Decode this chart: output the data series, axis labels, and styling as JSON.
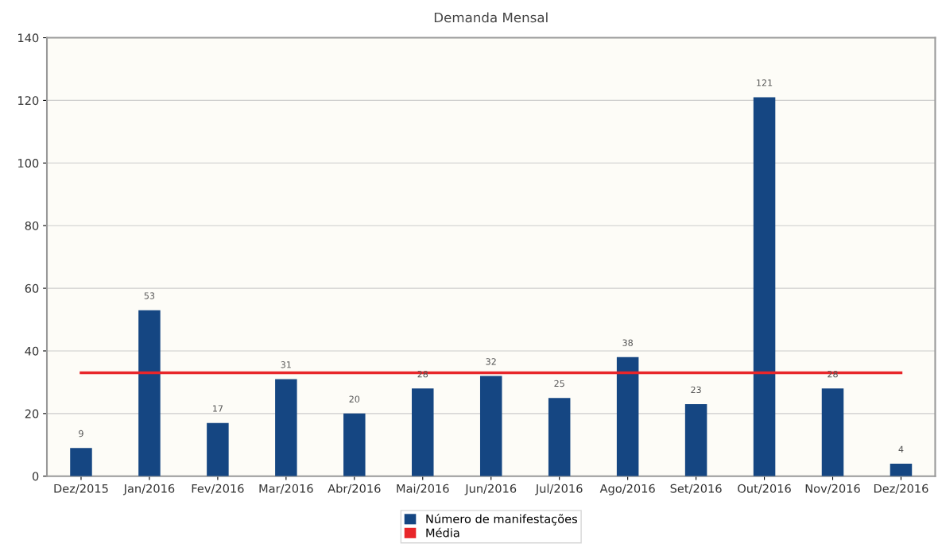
{
  "chart_data": {
    "type": "bar",
    "title": "Demanda Mensal",
    "categories": [
      "Dez/2015",
      "Jan/2016",
      "Fev/2016",
      "Mar/2016",
      "Abr/2016",
      "Mai/2016",
      "Jun/2016",
      "Jul/2016",
      "Ago/2016",
      "Set/2016",
      "Out/2016",
      "Nov/2016",
      "Dez/2016"
    ],
    "series": [
      {
        "name": "Número de manifestações",
        "color": "#154682",
        "values": [
          9,
          53,
          17,
          31,
          20,
          28,
          32,
          25,
          38,
          23,
          121,
          28,
          4
        ],
        "value_labels": [
          "9",
          "53",
          "17",
          "31",
          "20",
          "28",
          "32",
          "25",
          "38",
          "23",
          "121",
          "28",
          "4"
        ]
      },
      {
        "name": "Média",
        "type": "line",
        "color": "#e8262a",
        "values": [
          33,
          33,
          33,
          33,
          33,
          33,
          33,
          33,
          33,
          33,
          33,
          33,
          33
        ]
      }
    ],
    "ylim": [
      0,
      140
    ],
    "yticks": [
      0,
      20,
      40,
      60,
      80,
      100,
      120,
      140
    ],
    "grid": "y",
    "legend": "bottom",
    "marker": "none"
  }
}
